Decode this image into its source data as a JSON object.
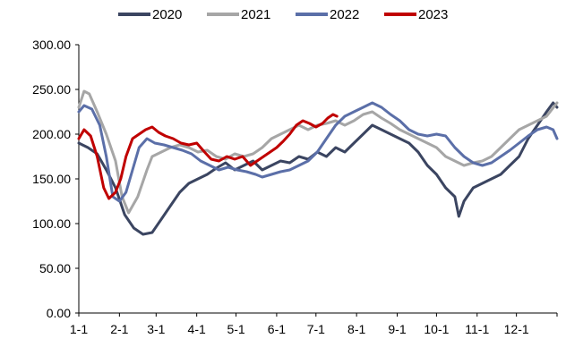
{
  "chart_data": {
    "type": "line",
    "title": "",
    "xlabel": "",
    "ylabel": "",
    "x_ticks": [
      "1-1",
      "2-1",
      "3-1",
      "4-1",
      "5-1",
      "6-1",
      "7-1",
      "8-1",
      "9-1",
      "10-1",
      "11-1",
      "12-1"
    ],
    "y_ticks": [
      "0.00",
      "50.00",
      "100.00",
      "150.00",
      "200.00",
      "250.00",
      "300.00"
    ],
    "ylim": [
      0,
      300
    ],
    "xlim_days": [
      0,
      365
    ],
    "grid": false,
    "legend_position": "top",
    "series": [
      {
        "name": "2020",
        "color": "#3b4561",
        "points": [
          [
            0,
            190
          ],
          [
            7,
            185
          ],
          [
            14,
            178
          ],
          [
            21,
            160
          ],
          [
            28,
            140
          ],
          [
            35,
            110
          ],
          [
            42,
            95
          ],
          [
            49,
            88
          ],
          [
            56,
            90
          ],
          [
            63,
            105
          ],
          [
            70,
            120
          ],
          [
            77,
            135
          ],
          [
            84,
            145
          ],
          [
            91,
            150
          ],
          [
            98,
            155
          ],
          [
            105,
            162
          ],
          [
            112,
            168
          ],
          [
            119,
            160
          ],
          [
            126,
            165
          ],
          [
            133,
            170
          ],
          [
            140,
            160
          ],
          [
            147,
            165
          ],
          [
            154,
            170
          ],
          [
            161,
            168
          ],
          [
            168,
            175
          ],
          [
            175,
            172
          ],
          [
            182,
            180
          ],
          [
            189,
            175
          ],
          [
            196,
            185
          ],
          [
            203,
            180
          ],
          [
            210,
            190
          ],
          [
            217,
            200
          ],
          [
            224,
            210
          ],
          [
            231,
            205
          ],
          [
            238,
            200
          ],
          [
            245,
            195
          ],
          [
            252,
            190
          ],
          [
            259,
            180
          ],
          [
            266,
            165
          ],
          [
            273,
            155
          ],
          [
            280,
            140
          ],
          [
            287,
            130
          ],
          [
            290,
            108
          ],
          [
            294,
            125
          ],
          [
            301,
            140
          ],
          [
            308,
            145
          ],
          [
            315,
            150
          ],
          [
            322,
            155
          ],
          [
            329,
            165
          ],
          [
            336,
            175
          ],
          [
            343,
            195
          ],
          [
            350,
            210
          ],
          [
            357,
            225
          ],
          [
            362,
            235
          ],
          [
            365,
            230
          ]
        ]
      },
      {
        "name": "2021",
        "color": "#a6a6a6",
        "points": [
          [
            0,
            230
          ],
          [
            4,
            248
          ],
          [
            8,
            245
          ],
          [
            14,
            225
          ],
          [
            21,
            200
          ],
          [
            28,
            170
          ],
          [
            33,
            130
          ],
          [
            38,
            112
          ],
          [
            45,
            130
          ],
          [
            52,
            160
          ],
          [
            56,
            175
          ],
          [
            63,
            180
          ],
          [
            70,
            185
          ],
          [
            77,
            188
          ],
          [
            84,
            185
          ],
          [
            91,
            180
          ],
          [
            98,
            182
          ],
          [
            105,
            175
          ],
          [
            112,
            172
          ],
          [
            119,
            178
          ],
          [
            126,
            175
          ],
          [
            133,
            178
          ],
          [
            140,
            185
          ],
          [
            147,
            195
          ],
          [
            154,
            200
          ],
          [
            161,
            205
          ],
          [
            168,
            210
          ],
          [
            175,
            205
          ],
          [
            182,
            210
          ],
          [
            189,
            212
          ],
          [
            196,
            215
          ],
          [
            203,
            210
          ],
          [
            210,
            215
          ],
          [
            217,
            222
          ],
          [
            224,
            225
          ],
          [
            231,
            218
          ],
          [
            238,
            212
          ],
          [
            245,
            205
          ],
          [
            252,
            200
          ],
          [
            259,
            195
          ],
          [
            266,
            190
          ],
          [
            273,
            185
          ],
          [
            280,
            175
          ],
          [
            287,
            170
          ],
          [
            294,
            165
          ],
          [
            301,
            168
          ],
          [
            308,
            170
          ],
          [
            315,
            175
          ],
          [
            322,
            185
          ],
          [
            329,
            195
          ],
          [
            336,
            205
          ],
          [
            343,
            210
          ],
          [
            350,
            215
          ],
          [
            357,
            220
          ],
          [
            365,
            235
          ]
        ]
      },
      {
        "name": "2022",
        "color": "#5b6fa8",
        "points": [
          [
            0,
            225
          ],
          [
            4,
            232
          ],
          [
            10,
            228
          ],
          [
            16,
            210
          ],
          [
            21,
            175
          ],
          [
            26,
            130
          ],
          [
            31,
            125
          ],
          [
            36,
            135
          ],
          [
            41,
            160
          ],
          [
            46,
            185
          ],
          [
            52,
            195
          ],
          [
            58,
            190
          ],
          [
            65,
            188
          ],
          [
            72,
            185
          ],
          [
            79,
            182
          ],
          [
            86,
            178
          ],
          [
            93,
            170
          ],
          [
            100,
            165
          ],
          [
            107,
            160
          ],
          [
            114,
            163
          ],
          [
            121,
            160
          ],
          [
            128,
            158
          ],
          [
            135,
            155
          ],
          [
            140,
            152
          ],
          [
            147,
            155
          ],
          [
            154,
            158
          ],
          [
            161,
            160
          ],
          [
            168,
            165
          ],
          [
            175,
            170
          ],
          [
            182,
            180
          ],
          [
            189,
            195
          ],
          [
            196,
            210
          ],
          [
            203,
            220
          ],
          [
            210,
            225
          ],
          [
            217,
            230
          ],
          [
            224,
            235
          ],
          [
            231,
            230
          ],
          [
            238,
            222
          ],
          [
            245,
            215
          ],
          [
            252,
            205
          ],
          [
            259,
            200
          ],
          [
            266,
            198
          ],
          [
            273,
            200
          ],
          [
            280,
            198
          ],
          [
            287,
            185
          ],
          [
            294,
            175
          ],
          [
            301,
            168
          ],
          [
            308,
            165
          ],
          [
            315,
            168
          ],
          [
            322,
            175
          ],
          [
            329,
            182
          ],
          [
            336,
            190
          ],
          [
            343,
            198
          ],
          [
            350,
            205
          ],
          [
            357,
            208
          ],
          [
            362,
            205
          ],
          [
            365,
            195
          ]
        ]
      },
      {
        "name": "2023",
        "color": "#c00000",
        "points": [
          [
            0,
            195
          ],
          [
            4,
            205
          ],
          [
            9,
            198
          ],
          [
            14,
            175
          ],
          [
            19,
            140
          ],
          [
            23,
            128
          ],
          [
            28,
            135
          ],
          [
            32,
            150
          ],
          [
            36,
            175
          ],
          [
            41,
            195
          ],
          [
            46,
            200
          ],
          [
            51,
            205
          ],
          [
            56,
            208
          ],
          [
            61,
            202
          ],
          [
            66,
            198
          ],
          [
            72,
            195
          ],
          [
            78,
            190
          ],
          [
            84,
            188
          ],
          [
            90,
            190
          ],
          [
            96,
            180
          ],
          [
            101,
            172
          ],
          [
            107,
            170
          ],
          [
            113,
            175
          ],
          [
            119,
            172
          ],
          [
            125,
            175
          ],
          [
            131,
            165
          ],
          [
            136,
            170
          ],
          [
            141,
            175
          ],
          [
            146,
            180
          ],
          [
            151,
            185
          ],
          [
            156,
            192
          ],
          [
            161,
            200
          ],
          [
            166,
            210
          ],
          [
            171,
            215
          ],
          [
            176,
            212
          ],
          [
            181,
            208
          ],
          [
            186,
            212
          ],
          [
            190,
            218
          ],
          [
            194,
            222
          ],
          [
            197,
            220
          ]
        ]
      }
    ]
  }
}
